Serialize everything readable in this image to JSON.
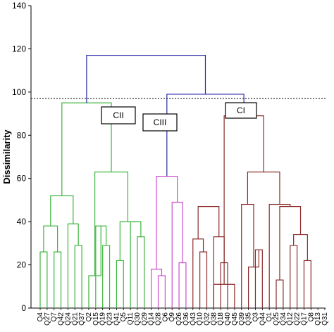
{
  "chart_data": {
    "type": "dendrogram",
    "title": "",
    "xlabel": "",
    "ylabel": "Dissimilarity",
    "ylim": [
      0,
      140
    ],
    "yticks": [
      0,
      20,
      40,
      60,
      80,
      100,
      120,
      140
    ],
    "cut_line": {
      "y": 97,
      "style": "dashed",
      "color": "#000000"
    },
    "colors": {
      "CII": "#3cb43c",
      "CIII": "#cc4fcc",
      "CI": "#8b2a2a",
      "root": "#2a2aa6"
    },
    "leaves": [
      "Q4",
      "Q27",
      "Q7",
      "Q42",
      "Q24",
      "Q21",
      "Q37",
      "Q2",
      "Q15",
      "Q19",
      "Q23",
      "Q41",
      "Q5",
      "Q11",
      "Q30",
      "Q29",
      "Q14",
      "Q28",
      "Q6",
      "Q9",
      "Q26",
      "Q36",
      "Q43",
      "Q10",
      "Q32",
      "Q38",
      "Q18",
      "Q40",
      "Q45",
      "Q39",
      "Q35",
      "Q3",
      "Q44",
      "Q1",
      "Q25",
      "Q34",
      "Q12",
      "Q22",
      "Q17",
      "Q8",
      "Q13",
      "Q31"
    ],
    "clusters": [
      {
        "name": "CII",
        "color": "#3cb43c",
        "leaves": [
          "Q4",
          "Q27",
          "Q7",
          "Q42",
          "Q24",
          "Q21",
          "Q37",
          "Q2",
          "Q15",
          "Q19",
          "Q23",
          "Q41",
          "Q5",
          "Q11",
          "Q30",
          "Q29"
        ]
      },
      {
        "name": "CIII",
        "color": "#cc4fcc",
        "leaves": [
          "Q14",
          "Q28",
          "Q6",
          "Q9",
          "Q26",
          "Q36"
        ]
      },
      {
        "name": "CI",
        "color": "#8b2a2a",
        "leaves": [
          "Q43",
          "Q10",
          "Q32",
          "Q38",
          "Q18",
          "Q40",
          "Q45",
          "Q39",
          "Q35",
          "Q3",
          "Q44",
          "Q1",
          "Q25",
          "Q34",
          "Q12",
          "Q22",
          "Q17",
          "Q8",
          "Q13",
          "Q31"
        ]
      }
    ],
    "merges": [
      {
        "cluster": "CII",
        "left": 0,
        "right": 1,
        "height": 26
      },
      {
        "cluster": "CII",
        "left": 2,
        "right": 3,
        "height": 26
      },
      {
        "cluster": "CII",
        "left": 42,
        "right": 43,
        "height": 38
      },
      {
        "cluster": "CII",
        "left": 5,
        "right": 6,
        "height": 29
      },
      {
        "cluster": "CII",
        "left": 4,
        "right": 45,
        "height": 39
      },
      {
        "cluster": "CII",
        "left": 44,
        "right": 46,
        "height": 52
      },
      {
        "cluster": "CII",
        "left": 9,
        "right": 10,
        "height": 29
      },
      {
        "cluster": "CII",
        "left": 8,
        "right": 48,
        "height": 38
      },
      {
        "cluster": "CII",
        "left": 11,
        "right": 12,
        "height": 22
      },
      {
        "cluster": "CII",
        "left": 14,
        "right": 15,
        "height": 33
      },
      {
        "cluster": "CII",
        "left": 13,
        "right": 51,
        "height": 40
      },
      {
        "cluster": "CII",
        "left": 50,
        "right": 52,
        "height": 40
      },
      {
        "cluster": "CII",
        "left": 7,
        "right": 49,
        "height": 15
      },
      {
        "cluster": "CII",
        "left": 54,
        "right": 53,
        "height": 63
      },
      {
        "cluster": "CII",
        "left": 47,
        "right": 55,
        "height": 95
      },
      {
        "cluster": "CIII",
        "left": 17,
        "right": 18,
        "height": 15
      },
      {
        "cluster": "CIII",
        "left": 16,
        "right": 57,
        "height": 18
      },
      {
        "cluster": "CIII",
        "left": 20,
        "right": 21,
        "height": 21
      },
      {
        "cluster": "CIII",
        "left": 19,
        "right": 59,
        "height": 49
      },
      {
        "cluster": "CIII",
        "left": 58,
        "right": 60,
        "height": 61
      },
      {
        "cluster": "CI",
        "left": 23,
        "right": 24,
        "height": 26
      },
      {
        "cluster": "CI",
        "left": 22,
        "right": 62,
        "height": 32
      },
      {
        "cluster": "CI",
        "left": 26,
        "right": 27,
        "height": 21
      },
      {
        "cluster": "CI",
        "left": 25,
        "right": 64,
        "height": 33
      },
      {
        "cluster": "CI",
        "left": 63,
        "right": 65,
        "height": 47
      },
      {
        "cluster": "CI",
        "left": 25,
        "right": 28,
        "height": 11
      },
      {
        "cluster": "CI",
        "left": 31,
        "right": 32,
        "height": 27
      },
      {
        "cluster": "CI",
        "left": 30,
        "right": 68,
        "height": 19
      },
      {
        "cluster": "CI",
        "left": 29,
        "right": 69,
        "height": 48
      },
      {
        "cluster": "CI",
        "left": 34,
        "right": 35,
        "height": 13
      },
      {
        "cluster": "CI",
        "left": 36,
        "right": 37,
        "height": 29
      },
      {
        "cluster": "CI",
        "left": 38,
        "right": 39,
        "height": 22
      },
      {
        "cluster": "CI",
        "left": 72,
        "right": 73,
        "height": 34
      },
      {
        "cluster": "CI",
        "left": 71,
        "right": 74,
        "height": 47
      },
      {
        "cluster": "CI",
        "left": 33,
        "right": 75,
        "height": 48
      },
      {
        "cluster": "CI",
        "left": 70,
        "right": 76,
        "height": 63
      },
      {
        "cluster": "CI",
        "left": 67,
        "right": 77,
        "height": 89
      },
      {
        "cluster": "root",
        "left": 61,
        "right": 78,
        "height": 99
      },
      {
        "cluster": "root",
        "left": 56,
        "right": 79,
        "height": 117
      }
    ],
    "annotations": [
      {
        "text": "CII",
        "cluster": "CII"
      },
      {
        "text": "CIII",
        "cluster": "CIII"
      },
      {
        "text": "CI",
        "cluster": "CI"
      }
    ]
  }
}
